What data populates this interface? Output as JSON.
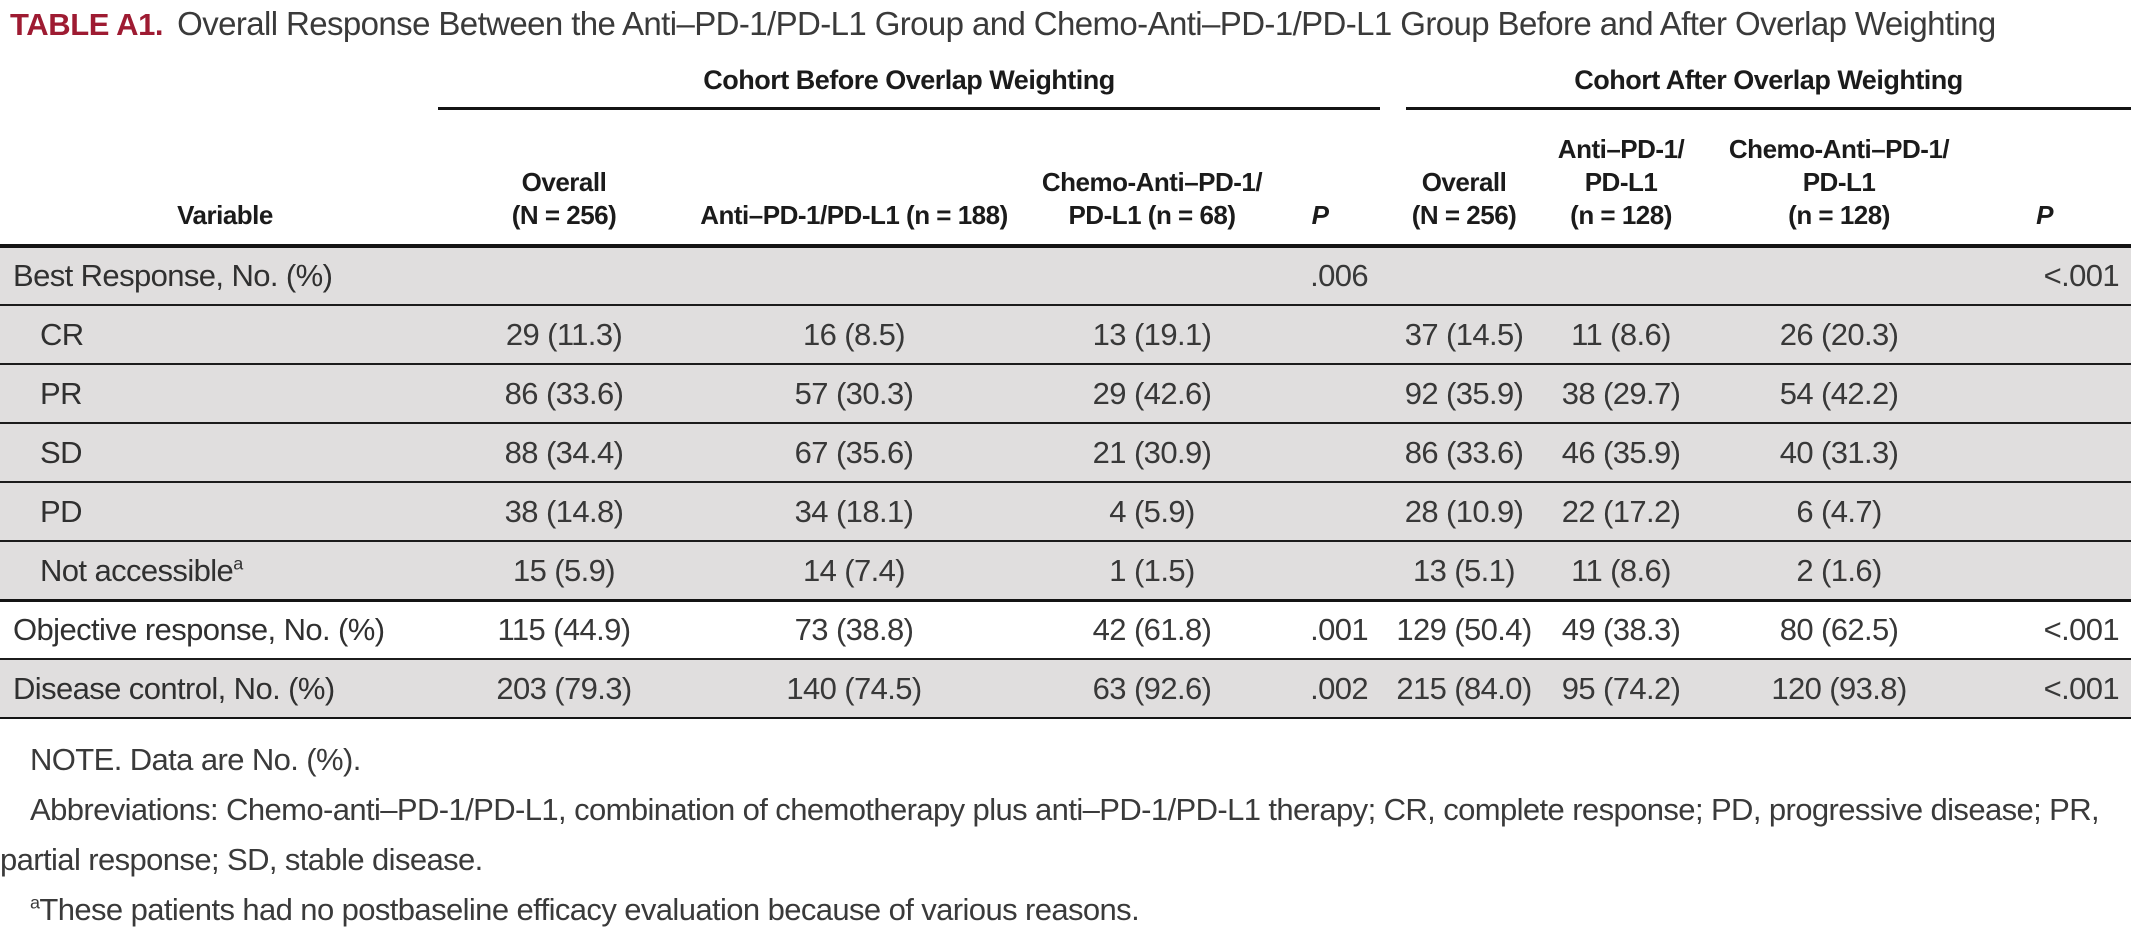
{
  "colors": {
    "accent_red": "#9e1b32",
    "row_shade": "#e0dede",
    "rule_black": "#141414"
  },
  "title": {
    "label": "TABLE A1.",
    "text": "Overall Response Between the Anti–PD-1/PD-L1 Group and Chemo-Anti–PD-1/PD-L1 Group Before and After Overlap Weighting"
  },
  "table": {
    "group_headers": {
      "before": "Cohort Before Overlap Weighting",
      "after": "Cohort After Overlap Weighting"
    },
    "columns": {
      "variable": "Variable",
      "before": {
        "overall": [
          "Overall",
          "(N = 256)"
        ],
        "anti": [
          "Anti–PD-1/PD-L1 (n = 188)"
        ],
        "chemo": [
          "Chemo-Anti–PD-1/",
          "PD-L1 (n = 68)"
        ],
        "p": "P"
      },
      "after": {
        "overall": [
          "Overall",
          "(N = 256)"
        ],
        "anti": [
          "Anti–PD-1/",
          "PD-L1",
          "(n = 128)"
        ],
        "chemo": [
          "Chemo-Anti–PD-1/",
          "PD-L1",
          "(n = 128)"
        ],
        "p": "P"
      }
    },
    "rows": [
      {
        "label": "Best Response, No. (%)",
        "sup": "",
        "before": {
          "overall": "",
          "anti": "",
          "chemo": "",
          "p": ".006"
        },
        "after": {
          "overall": "",
          "anti": "",
          "chemo": "",
          "p": "<.001"
        }
      },
      {
        "label": "CR",
        "sup": "",
        "before": {
          "overall": "29 (11.3)",
          "anti": "16 (8.5)",
          "chemo": "13 (19.1)",
          "p": ""
        },
        "after": {
          "overall": "37 (14.5)",
          "anti": "11 (8.6)",
          "chemo": "26 (20.3)",
          "p": ""
        }
      },
      {
        "label": "PR",
        "sup": "",
        "before": {
          "overall": "86 (33.6)",
          "anti": "57 (30.3)",
          "chemo": "29 (42.6)",
          "p": ""
        },
        "after": {
          "overall": "92 (35.9)",
          "anti": "38 (29.7)",
          "chemo": "54 (42.2)",
          "p": ""
        }
      },
      {
        "label": "SD",
        "sup": "",
        "before": {
          "overall": "88 (34.4)",
          "anti": "67 (35.6)",
          "chemo": "21 (30.9)",
          "p": ""
        },
        "after": {
          "overall": "86 (33.6)",
          "anti": "46 (35.9)",
          "chemo": "40 (31.3)",
          "p": ""
        }
      },
      {
        "label": "PD",
        "sup": "",
        "before": {
          "overall": "38 (14.8)",
          "anti": "34 (18.1)",
          "chemo": "4 (5.9)",
          "p": ""
        },
        "after": {
          "overall": "28 (10.9)",
          "anti": "22 (17.2)",
          "chemo": "6 (4.7)",
          "p": ""
        }
      },
      {
        "label": "Not accessible",
        "sup": "a",
        "before": {
          "overall": "15 (5.9)",
          "anti": "14 (7.4)",
          "chemo": "1 (1.5)",
          "p": ""
        },
        "after": {
          "overall": "13 (5.1)",
          "anti": "11 (8.6)",
          "chemo": "2 (1.6)",
          "p": ""
        }
      },
      {
        "label": "Objective response, No. (%)",
        "sup": "",
        "before": {
          "overall": "115 (44.9)",
          "anti": "73 (38.8)",
          "chemo": "42 (61.8)",
          "p": ".001"
        },
        "after": {
          "overall": "129 (50.4)",
          "anti": "49 (38.3)",
          "chemo": "80 (62.5)",
          "p": "<.001"
        }
      },
      {
        "label": "Disease control, No. (%)",
        "sup": "",
        "before": {
          "overall": "203 (79.3)",
          "anti": "140 (74.5)",
          "chemo": "63 (92.6)",
          "p": ".002"
        },
        "after": {
          "overall": "215 (84.0)",
          "anti": "95 (74.2)",
          "chemo": "120 (93.8)",
          "p": "<.001"
        }
      }
    ]
  },
  "notes": {
    "note1": "NOTE. Data are No. (%).",
    "note2": "Abbreviations: Chemo-anti–PD-1/PD-L1, combination of chemotherapy plus anti–PD-1/PD-L1 therapy; CR, complete response; PD, progressive disease; PR, partial response; SD, stable disease.",
    "note3_marker": "a",
    "note3": "These patients had no postbaseline efficacy evaluation because of various reasons."
  }
}
